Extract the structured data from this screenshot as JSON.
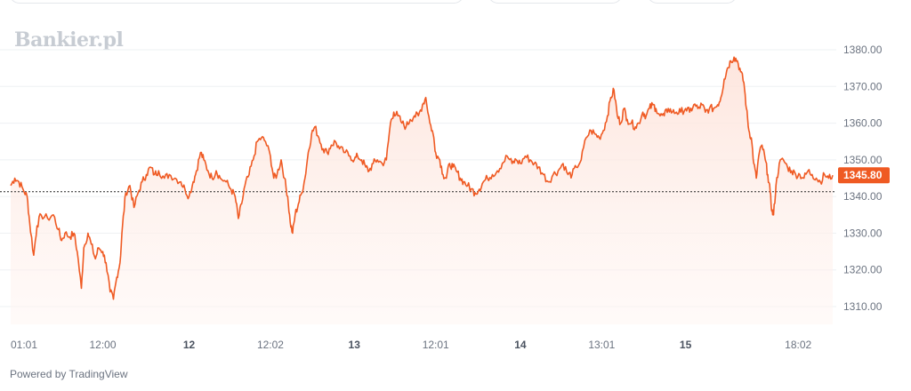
{
  "watermark": "Bankier.pl",
  "powered_by": "Powered by TradingView",
  "colors": {
    "line": "#ef5a23",
    "fill": "#fde8e1",
    "badge": "#ef5a23",
    "grid": "#eef0f3",
    "baseline": "#222222"
  },
  "chart_data": {
    "type": "area",
    "title": "",
    "xlabel": "",
    "ylabel": "",
    "ylim": [
      1305,
      1383
    ],
    "y_ticks": [
      "1380.00",
      "1370.00",
      "1360.00",
      "1350.00",
      "1340.00",
      "1330.00",
      "1320.00",
      "1310.00"
    ],
    "x_ticks": [
      {
        "label": "01:01",
        "t": 0.0,
        "bold": false
      },
      {
        "label": "12:00",
        "t": 0.112,
        "bold": false
      },
      {
        "label": "12",
        "t": 0.217,
        "bold": true
      },
      {
        "label": "12:02",
        "t": 0.316,
        "bold": false
      },
      {
        "label": "13",
        "t": 0.418,
        "bold": true
      },
      {
        "label": "12:01",
        "t": 0.517,
        "bold": false
      },
      {
        "label": "14",
        "t": 0.62,
        "bold": true
      },
      {
        "label": "13:01",
        "t": 0.719,
        "bold": false
      },
      {
        "label": "15",
        "t": 0.821,
        "bold": true
      },
      {
        "label": "18:02",
        "t": 0.958,
        "bold": false
      }
    ],
    "reference_line": 1341.3,
    "last_value": "1345.80",
    "series": [
      {
        "values": [
          [
            0.0,
            1343
          ],
          [
            0.005,
            1345
          ],
          [
            0.01,
            1344
          ],
          [
            0.015,
            1342
          ],
          [
            0.02,
            1340
          ],
          [
            0.023,
            1333
          ],
          [
            0.028,
            1324
          ],
          [
            0.032,
            1332
          ],
          [
            0.037,
            1335
          ],
          [
            0.045,
            1334
          ],
          [
            0.052,
            1335
          ],
          [
            0.058,
            1331
          ],
          [
            0.062,
            1328
          ],
          [
            0.066,
            1330
          ],
          [
            0.072,
            1329
          ],
          [
            0.077,
            1330
          ],
          [
            0.081,
            1325
          ],
          [
            0.086,
            1315
          ],
          [
            0.089,
            1326
          ],
          [
            0.094,
            1330
          ],
          [
            0.098,
            1327
          ],
          [
            0.103,
            1323
          ],
          [
            0.107,
            1326
          ],
          [
            0.112,
            1325
          ],
          [
            0.116,
            1322
          ],
          [
            0.121,
            1314
          ],
          [
            0.125,
            1312
          ],
          [
            0.129,
            1318
          ],
          [
            0.133,
            1322
          ],
          [
            0.136,
            1332
          ],
          [
            0.14,
            1341
          ],
          [
            0.145,
            1343
          ],
          [
            0.15,
            1337
          ],
          [
            0.155,
            1341
          ],
          [
            0.16,
            1344
          ],
          [
            0.165,
            1346
          ],
          [
            0.17,
            1348
          ],
          [
            0.175,
            1346
          ],
          [
            0.18,
            1347
          ],
          [
            0.187,
            1345
          ],
          [
            0.193,
            1346
          ],
          [
            0.2,
            1345
          ],
          [
            0.207,
            1344
          ],
          [
            0.212,
            1342
          ],
          [
            0.217,
            1340
          ],
          [
            0.222,
            1344
          ],
          [
            0.226,
            1347
          ],
          [
            0.231,
            1352
          ],
          [
            0.235,
            1350
          ],
          [
            0.24,
            1347
          ],
          [
            0.245,
            1345
          ],
          [
            0.25,
            1347
          ],
          [
            0.255,
            1345
          ],
          [
            0.262,
            1344
          ],
          [
            0.268,
            1342
          ],
          [
            0.273,
            1340
          ],
          [
            0.277,
            1334
          ],
          [
            0.281,
            1338
          ],
          [
            0.285,
            1343
          ],
          [
            0.29,
            1346
          ],
          [
            0.295,
            1350
          ],
          [
            0.3,
            1355
          ],
          [
            0.305,
            1356
          ],
          [
            0.31,
            1355
          ],
          [
            0.316,
            1351
          ],
          [
            0.32,
            1345
          ],
          [
            0.324,
            1346
          ],
          [
            0.329,
            1350
          ],
          [
            0.333,
            1345
          ],
          [
            0.337,
            1340
          ],
          [
            0.34,
            1333
          ],
          [
            0.343,
            1330
          ],
          [
            0.346,
            1335
          ],
          [
            0.35,
            1338
          ],
          [
            0.354,
            1341
          ],
          [
            0.358,
            1345
          ],
          [
            0.362,
            1352
          ],
          [
            0.366,
            1357
          ],
          [
            0.37,
            1359
          ],
          [
            0.375,
            1356
          ],
          [
            0.38,
            1353
          ],
          [
            0.385,
            1352
          ],
          [
            0.39,
            1354
          ],
          [
            0.395,
            1355
          ],
          [
            0.4,
            1353
          ],
          [
            0.407,
            1352
          ],
          [
            0.413,
            1351
          ],
          [
            0.418,
            1350
          ],
          [
            0.422,
            1351
          ],
          [
            0.427,
            1350
          ],
          [
            0.432,
            1348
          ],
          [
            0.436,
            1347
          ],
          [
            0.441,
            1349
          ],
          [
            0.446,
            1350
          ],
          [
            0.452,
            1349
          ],
          [
            0.457,
            1350
          ],
          [
            0.462,
            1360
          ],
          [
            0.466,
            1363
          ],
          [
            0.471,
            1362
          ],
          [
            0.476,
            1360
          ],
          [
            0.481,
            1359
          ],
          [
            0.486,
            1361
          ],
          [
            0.491,
            1362
          ],
          [
            0.496,
            1362
          ],
          [
            0.501,
            1365
          ],
          [
            0.505,
            1367
          ],
          [
            0.51,
            1360
          ],
          [
            0.514,
            1357
          ],
          [
            0.517,
            1352
          ],
          [
            0.522,
            1350
          ],
          [
            0.526,
            1346
          ],
          [
            0.53,
            1345
          ],
          [
            0.534,
            1349
          ],
          [
            0.538,
            1348
          ],
          [
            0.542,
            1347
          ],
          [
            0.547,
            1345
          ],
          [
            0.551,
            1344
          ],
          [
            0.556,
            1343
          ],
          [
            0.56,
            1342
          ],
          [
            0.565,
            1341
          ],
          [
            0.57,
            1342
          ],
          [
            0.575,
            1344
          ],
          [
            0.58,
            1345
          ],
          [
            0.586,
            1346
          ],
          [
            0.592,
            1347
          ],
          [
            0.598,
            1349
          ],
          [
            0.604,
            1351
          ],
          [
            0.61,
            1349
          ],
          [
            0.615,
            1350
          ],
          [
            0.62,
            1349
          ],
          [
            0.626,
            1351
          ],
          [
            0.632,
            1350
          ],
          [
            0.637,
            1349
          ],
          [
            0.642,
            1348
          ],
          [
            0.648,
            1346
          ],
          [
            0.654,
            1344
          ],
          [
            0.66,
            1346
          ],
          [
            0.666,
            1347
          ],
          [
            0.672,
            1349
          ],
          [
            0.678,
            1346
          ],
          [
            0.683,
            1346
          ],
          [
            0.688,
            1348
          ],
          [
            0.694,
            1350
          ],
          [
            0.7,
            1356
          ],
          [
            0.706,
            1358
          ],
          [
            0.711,
            1357
          ],
          [
            0.716,
            1356
          ],
          [
            0.721,
            1358
          ],
          [
            0.726,
            1362
          ],
          [
            0.73,
            1367
          ],
          [
            0.734,
            1369
          ],
          [
            0.738,
            1362
          ],
          [
            0.742,
            1360
          ],
          [
            0.746,
            1364
          ],
          [
            0.75,
            1361
          ],
          [
            0.755,
            1360
          ],
          [
            0.76,
            1359
          ],
          [
            0.764,
            1360
          ],
          [
            0.769,
            1363
          ],
          [
            0.773,
            1362
          ],
          [
            0.777,
            1364
          ],
          [
            0.781,
            1365
          ],
          [
            0.785,
            1364
          ],
          [
            0.79,
            1362
          ],
          [
            0.795,
            1362
          ],
          [
            0.8,
            1364
          ],
          [
            0.805,
            1363
          ],
          [
            0.81,
            1363
          ],
          [
            0.815,
            1363
          ],
          [
            0.821,
            1364
          ],
          [
            0.826,
            1363
          ],
          [
            0.831,
            1365
          ],
          [
            0.836,
            1364
          ],
          [
            0.841,
            1365
          ],
          [
            0.845,
            1363
          ],
          [
            0.85,
            1364
          ],
          [
            0.855,
            1364
          ],
          [
            0.86,
            1365
          ],
          [
            0.864,
            1367
          ],
          [
            0.868,
            1372
          ],
          [
            0.872,
            1375
          ],
          [
            0.876,
            1377
          ],
          [
            0.88,
            1378
          ],
          [
            0.884,
            1377
          ],
          [
            0.888,
            1374
          ],
          [
            0.892,
            1371
          ],
          [
            0.895,
            1364
          ],
          [
            0.898,
            1358
          ],
          [
            0.901,
            1356
          ],
          [
            0.904,
            1349
          ],
          [
            0.907,
            1345
          ],
          [
            0.91,
            1351
          ],
          [
            0.914,
            1354
          ],
          [
            0.918,
            1350
          ],
          [
            0.921,
            1346
          ],
          [
            0.924,
            1341
          ],
          [
            0.926,
            1336
          ],
          [
            0.928,
            1335
          ],
          [
            0.931,
            1343
          ],
          [
            0.935,
            1349
          ],
          [
            0.94,
            1350
          ],
          [
            0.945,
            1348
          ],
          [
            0.95,
            1347
          ],
          [
            0.955,
            1346
          ],
          [
            0.96,
            1346
          ],
          [
            0.965,
            1345
          ],
          [
            0.97,
            1347
          ],
          [
            0.975,
            1346
          ],
          [
            0.98,
            1345
          ],
          [
            0.985,
            1344
          ],
          [
            0.99,
            1346
          ],
          [
            0.995,
            1345
          ],
          [
            1.0,
            1345.8
          ]
        ]
      }
    ]
  }
}
